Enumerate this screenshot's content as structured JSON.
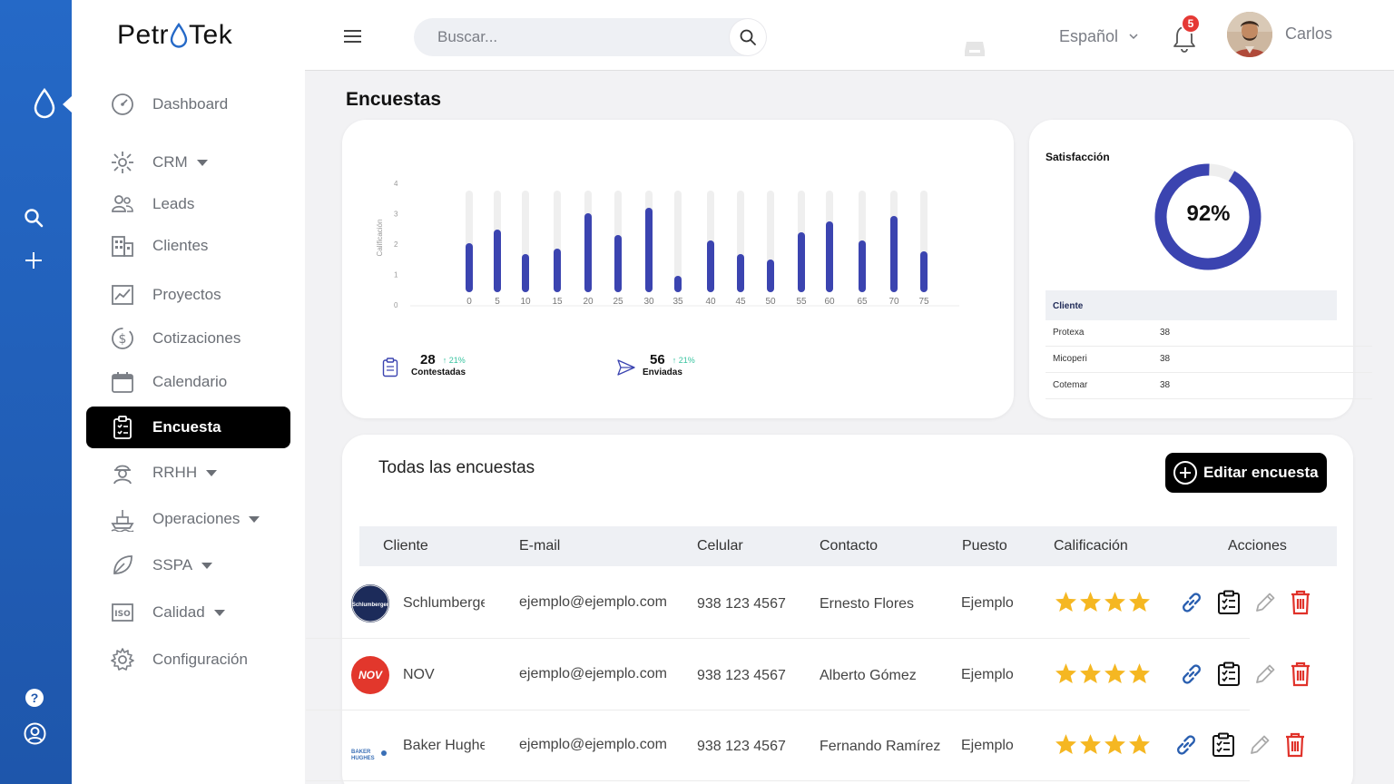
{
  "app": {
    "logo_left": "Petr",
    "logo_right": "Tek"
  },
  "nav": [
    {
      "label": "Dashboard",
      "icon": "dashboard-icon",
      "caret": false,
      "active": false
    },
    {
      "label": "CRM",
      "icon": "crm-icon",
      "caret": true,
      "active": false
    },
    {
      "label": "Leads",
      "icon": "users-icon",
      "caret": false,
      "active": false
    },
    {
      "label": "Clientes",
      "icon": "building-icon",
      "caret": false,
      "active": false
    },
    {
      "label": "Proyectos",
      "icon": "chart-line-icon",
      "caret": false,
      "active": false
    },
    {
      "label": "Cotizaciones",
      "icon": "dollar-icon",
      "caret": false,
      "active": false
    },
    {
      "label": "Calendario",
      "icon": "calendar-icon",
      "caret": false,
      "active": false
    },
    {
      "label": "Encuesta",
      "icon": "clipboard-icon",
      "caret": false,
      "active": true
    },
    {
      "label": "RRHH",
      "icon": "worker-icon",
      "caret": true,
      "active": false
    },
    {
      "label": "Operaciones",
      "icon": "ship-icon",
      "caret": true,
      "active": false
    },
    {
      "label": "SSPA",
      "icon": "leaf-icon",
      "caret": true,
      "active": false
    },
    {
      "label": "Calidad",
      "icon": "iso-icon",
      "caret": true,
      "active": false
    },
    {
      "label": "Configuración",
      "icon": "gear-icon",
      "caret": false,
      "active": false
    }
  ],
  "header": {
    "search_placeholder": "Buscar...",
    "language": "Español",
    "notifications": "5",
    "user": "Carlos"
  },
  "page": {
    "title": "Encuestas"
  },
  "chart_data": {
    "type": "bar",
    "categories": [
      "0",
      "5",
      "10",
      "15",
      "20",
      "25",
      "30",
      "35",
      "40",
      "45",
      "50",
      "55",
      "60",
      "65",
      "70",
      "75"
    ],
    "values": [
      1.8,
      2.3,
      1.4,
      1.6,
      2.9,
      2.1,
      3.1,
      0.6,
      1.9,
      1.4,
      1.2,
      2.2,
      2.6,
      1.9,
      2.8,
      1.5
    ],
    "ylim": [
      0,
      4
    ],
    "yticks": [
      "0",
      "1",
      "2",
      "3",
      "4"
    ],
    "ylabel": "Calificación",
    "colors": {
      "bar": "#3b44b0",
      "track": "#efefef"
    }
  },
  "stats": {
    "answered": {
      "value": "28",
      "change": "↑ 21%",
      "label": "Contestadas"
    },
    "sent": {
      "value": "56",
      "change": "↑ 21%",
      "label": "Enviadas"
    }
  },
  "satisfaction": {
    "title": "Satisfacción",
    "percent": 92,
    "percent_label": "92%",
    "header": "Cliente",
    "rows": [
      {
        "name": "Protexa",
        "value": "38"
      },
      {
        "name": "Micoperi",
        "value": "38"
      },
      {
        "name": "Cotemar",
        "value": "38"
      }
    ]
  },
  "surveys": {
    "title": "Todas las encuestas",
    "edit_label": "Editar encuesta",
    "columns": [
      "Cliente",
      "E-mail",
      "Celular",
      "Contacto",
      "Puesto",
      "Calificación",
      "Acciones"
    ],
    "rows": [
      {
        "client": "Schlumberger",
        "logo_text": "Schlumberger",
        "email": "ejemplo@ejemplo.com",
        "phone": "938 123 4567",
        "contact": "Ernesto Flores",
        "position": "Ejemplo",
        "rating": 4
      },
      {
        "client": "NOV",
        "logo_text": "NOV",
        "email": "ejemplo@ejemplo.com",
        "phone": "938 123 4567",
        "contact": "Alberto Gómez",
        "position": "Ejemplo",
        "rating": 4
      },
      {
        "client": "Baker Hughes",
        "logo_text": "BAKER HUGHES",
        "email": "ejemplo@ejemplo.com",
        "phone": "938 123 4567",
        "contact": "Fernando Ramírez",
        "position": "Ejemplo",
        "rating": 4
      }
    ]
  }
}
